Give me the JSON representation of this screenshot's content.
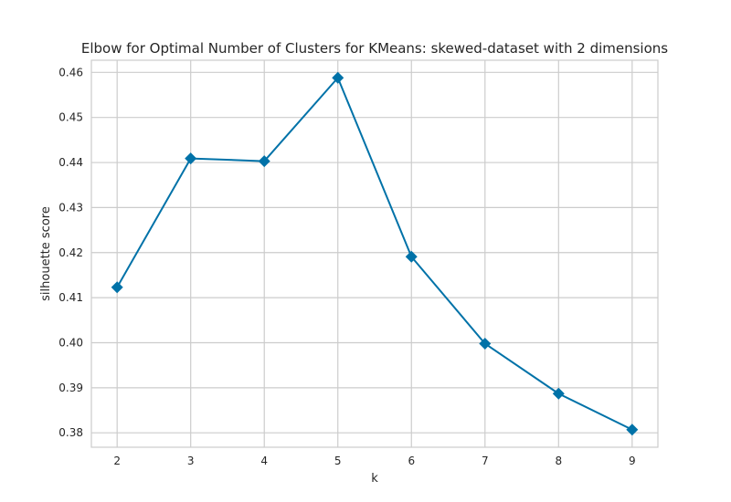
{
  "chart_data": {
    "type": "line",
    "title": "Elbow for Optimal Number of Clusters for KMeans: skewed-dataset with 2 dimensions",
    "xlabel": "k",
    "ylabel": "silhouette score",
    "x": [
      2,
      3,
      4,
      5,
      6,
      7,
      8,
      9
    ],
    "series": [
      {
        "values": [
          0.4123,
          0.4409,
          0.4403,
          0.4588,
          0.4191,
          0.3998,
          0.3887,
          0.3807
        ],
        "color": "#0072a8",
        "marker": "diamond"
      }
    ],
    "xlim": [
      1.65,
      9.35
    ],
    "ylim": [
      0.3768,
      0.4627
    ],
    "xticks": [
      2,
      3,
      4,
      5,
      6,
      7,
      8,
      9
    ],
    "yticks": [
      0.38,
      0.39,
      0.4,
      0.41,
      0.42,
      0.43,
      0.44,
      0.45,
      0.46
    ],
    "ytick_labels": [
      "0.38",
      "0.39",
      "0.40",
      "0.41",
      "0.42",
      "0.43",
      "0.44",
      "0.45",
      "0.46"
    ],
    "grid": true,
    "legend": "none"
  }
}
